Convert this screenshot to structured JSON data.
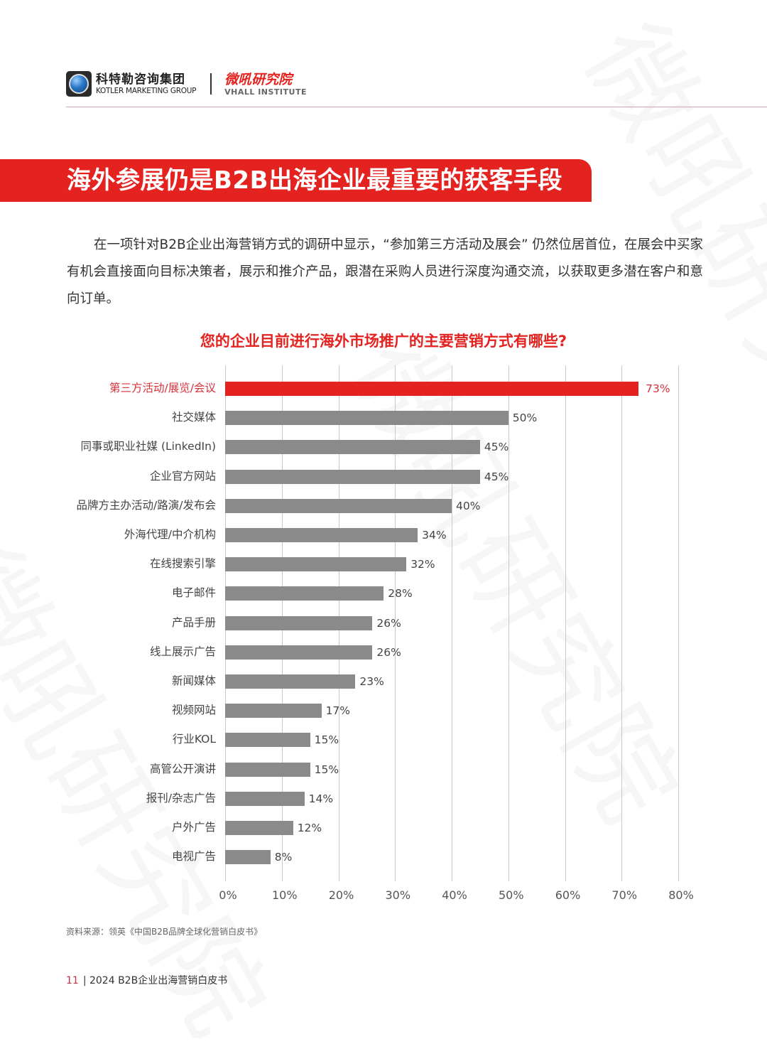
{
  "header": {
    "kotler_cn": "科特勒咨询集团",
    "kotler_en": "KOTLER MARKETING GROUP",
    "vhall_cn": "微吼研究院",
    "vhall_en": "VHALL INSTITUTE"
  },
  "banner": {
    "title": "海外参展仍是B2B出海企业最重要的获客手段"
  },
  "intro": {
    "text": "在一项针对B2B企业出海营销方式的调研中显示，“参加第三方活动及展会” 仍然位居首位，在展会中买家有机会直接面向目标决策者，展示和推介产品，跟潜在采购人员进行深度沟通交流，以获取更多潜在客户和意向订单。"
  },
  "chart_data": {
    "type": "bar",
    "orientation": "horizontal",
    "title": "您的企业目前进行海外市场推广的主要营销方式有哪些?",
    "xlabel": "",
    "ylabel": "",
    "xlim": [
      0,
      80
    ],
    "grid": true,
    "legend": null,
    "highlight_color": "#e42320",
    "bar_color": "#8a8a8a",
    "categories": [
      "第三方活动/展览/会议",
      "社交媒体",
      "同事或职业社媒 (LinkedIn)",
      "企业官方网站",
      "品牌方主办活动/路演/发布会",
      "外海代理/中介机构",
      "在线搜索引擎",
      "电子邮件",
      "产品手册",
      "线上展示广告",
      "新闻媒体",
      "视频网站",
      "行业KOL",
      "高管公开演讲",
      "报刊/杂志广告",
      "户外广告",
      "电视广告"
    ],
    "values": [
      73,
      50,
      45,
      45,
      40,
      34,
      32,
      28,
      26,
      26,
      23,
      17,
      15,
      15,
      14,
      12,
      8
    ],
    "value_labels": [
      "73%",
      "50%",
      "45%",
      "45%",
      "40%",
      "34%",
      "32%",
      "28%",
      "26%",
      "26%",
      "23%",
      "17%",
      "15%",
      "15%",
      "14%",
      "12%",
      "8%"
    ],
    "highlighted_index": 0,
    "x_ticks": [
      "0%",
      "10%",
      "20%",
      "30%",
      "40%",
      "50%",
      "60%",
      "70%",
      "80%"
    ]
  },
  "source": "资料来源：领英《中国B2B品牌全球化营销白皮书》",
  "footer": {
    "page_number": "11",
    "title": "| 2024 B2B企业出海营销白皮书"
  },
  "watermark": "微吼研究院"
}
